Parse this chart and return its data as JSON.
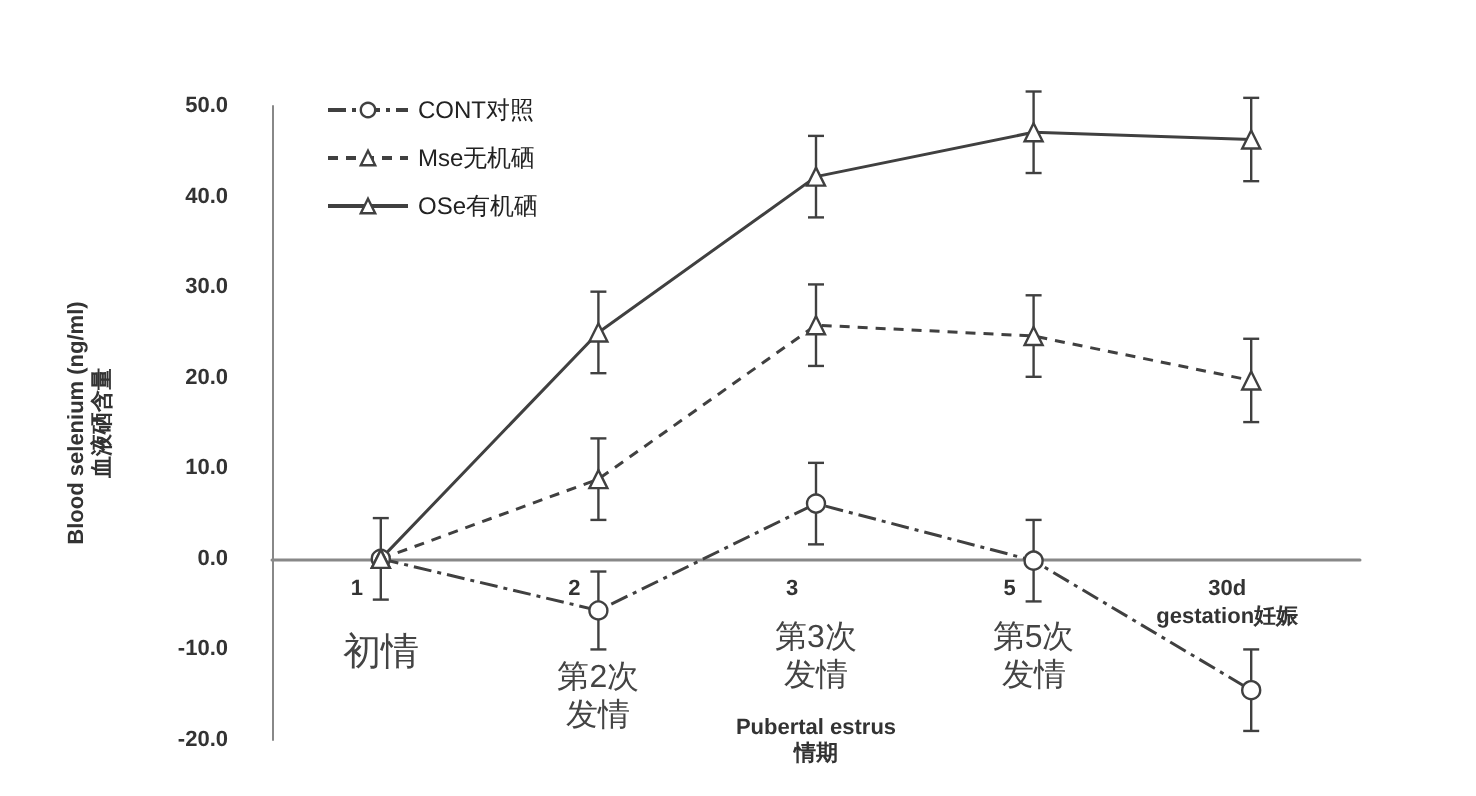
{
  "chart_data": {
    "type": "line",
    "xlabel": "Pubertal estrus\n情期",
    "ylabel": "Blood selenium (ng/ml)\n血液硒含量",
    "categories": [
      "1",
      "2",
      "3",
      "5",
      "30d\ngestation妊娠"
    ],
    "annotations": [
      "初情",
      "第2次发情",
      "第3次发情",
      "第5次发情"
    ],
    "ylim": [
      -20,
      50
    ],
    "yticks": [
      {
        "value": -20,
        "label": "-20.0"
      },
      {
        "value": -10,
        "label": "-10.0"
      },
      {
        "value": 0,
        "label": "0.0"
      },
      {
        "value": 10,
        "label": "10.0"
      },
      {
        "value": 20,
        "label": "20.0"
      },
      {
        "value": 30,
        "label": "30.0"
      },
      {
        "value": 40,
        "label": "40.0"
      },
      {
        "value": 50,
        "label": "50.0"
      }
    ],
    "series": [
      {
        "name": "CONT对照",
        "color": "#404040",
        "values": [
          0,
          -5.7,
          6.1,
          -0.2,
          -14.5
        ],
        "errors": [
          4.5,
          4.3,
          4.5,
          4.5,
          4.5
        ],
        "marker": "circle",
        "line_style": "dashdot"
      },
      {
        "name": "Mse无机硒",
        "color": "#404040",
        "values": [
          0,
          8.8,
          25.8,
          24.6,
          19.7
        ],
        "errors": [
          null,
          4.5,
          4.5,
          4.5,
          4.6
        ],
        "marker": "triangle",
        "line_style": "dashed"
      },
      {
        "name": "OSe有机硒",
        "color": "#404040",
        "values": [
          0,
          25,
          42.2,
          47.1,
          46.3
        ],
        "errors": [
          null,
          4.5,
          4.5,
          4.5,
          4.6
        ],
        "marker": "triangle",
        "line_style": "solid"
      }
    ],
    "legend": "top left",
    "grid": false
  }
}
